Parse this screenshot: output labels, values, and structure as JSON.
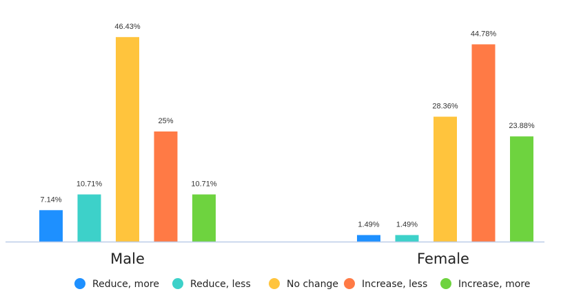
{
  "chart_data": {
    "type": "bar",
    "categories": [
      "Male",
      "Female"
    ],
    "series": [
      {
        "name": "Reduce, more",
        "color": "#1E90FF",
        "values": [
          7.14,
          1.49
        ],
        "labels": [
          "7.14%",
          "1.49%"
        ]
      },
      {
        "name": "Reduce, less",
        "color": "#3DD1C9",
        "values": [
          10.71,
          1.49
        ],
        "labels": [
          "10.71%",
          "1.49%"
        ]
      },
      {
        "name": "No change",
        "color": "#FFC43D",
        "values": [
          46.43,
          28.36
        ],
        "labels": [
          "46.43%",
          "28.36%"
        ]
      },
      {
        "name": "Increase, less",
        "color": "#FF7A45",
        "values": [
          25,
          44.78
        ],
        "labels": [
          "25%",
          "44.78%"
        ]
      },
      {
        "name": "Increase, more",
        "color": "#6ED33F",
        "values": [
          10.71,
          23.88
        ],
        "labels": [
          "10.71%",
          "23.88%"
        ]
      }
    ],
    "ylim": [
      0,
      50
    ],
    "grid": false,
    "legend_position": "bottom",
    "baseline_color": "#BBCCE8"
  }
}
